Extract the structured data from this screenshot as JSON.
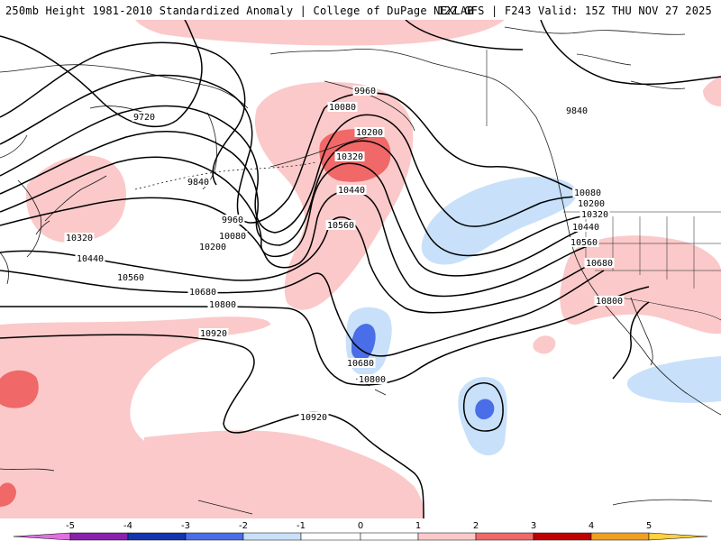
{
  "header": {
    "left_title": "250mb Height 1981-2010 Standardized Anomaly | College of DuPage NEXLAB",
    "right_title": "12Z GFS | F243 Valid: 15Z THU NOV 27 2025"
  },
  "colorbar": {
    "ticks": [
      "-5",
      "-4",
      "-3",
      "-2",
      "-1",
      "0",
      "1",
      "2",
      "3",
      "4",
      "5"
    ],
    "colors": [
      "#e070e0",
      "#8a1fb0",
      "#1535b0",
      "#4a6ee8",
      "#c8e0fa",
      "#ffffff",
      "#ffffff",
      "#fbc9c9",
      "#f06868",
      "#c00000",
      "#f0a020",
      "#ffd040"
    ]
  },
  "contour_labels": [
    {
      "id": "c9720",
      "text": "9720"
    },
    {
      "id": "c9840w",
      "text": "9840"
    },
    {
      "id": "c9960w",
      "text": "9960"
    },
    {
      "id": "c10080w",
      "text": "10080"
    },
    {
      "id": "c10200w",
      "text": "10200"
    },
    {
      "id": "c10320w",
      "text": "10320"
    },
    {
      "id": "c10440w",
      "text": "10440"
    },
    {
      "id": "c10560w",
      "text": "10560"
    },
    {
      "id": "c10680w",
      "text": "10680"
    },
    {
      "id": "c10800w",
      "text": "10800"
    },
    {
      "id": "c10920w",
      "text": "10920"
    },
    {
      "id": "c9960n",
      "text": "9960"
    },
    {
      "id": "c10080n",
      "text": "10080"
    },
    {
      "id": "c10200n",
      "text": "10200"
    },
    {
      "id": "c10320n",
      "text": "10320"
    },
    {
      "id": "c10440n",
      "text": "10440"
    },
    {
      "id": "c10560n",
      "text": "10560"
    },
    {
      "id": "c10680c",
      "text": "10680"
    },
    {
      "id": "c10800c",
      "text": "10800"
    },
    {
      "id": "c10920c",
      "text": "10920"
    },
    {
      "id": "c9840e",
      "text": "9840"
    },
    {
      "id": "c10080e",
      "text": "10080"
    },
    {
      "id": "c10200e",
      "text": "10200"
    },
    {
      "id": "c10320e",
      "text": "10320"
    },
    {
      "id": "c10440e",
      "text": "10440"
    },
    {
      "id": "c10560e",
      "text": "10560"
    },
    {
      "id": "c10680e",
      "text": "10680"
    },
    {
      "id": "c10800e",
      "text": "10800"
    }
  ]
}
